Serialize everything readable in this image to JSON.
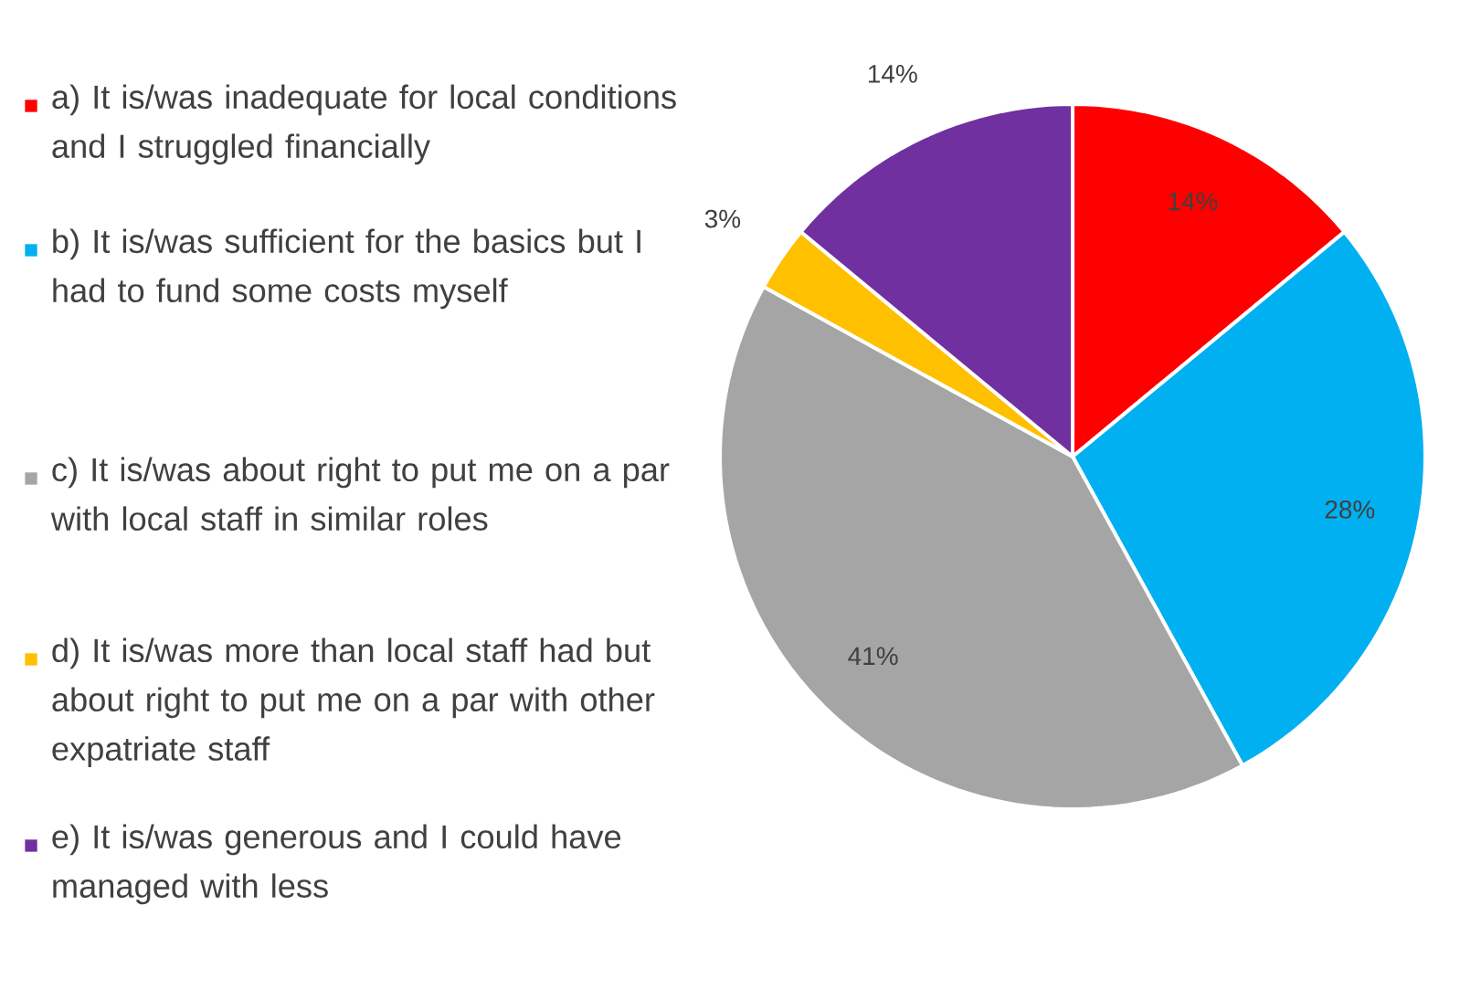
{
  "chart_data": {
    "type": "pie",
    "categories": [
      "a) It is/was inadequate for local conditions and I struggled financially",
      "b) It is/was sufficient for the basics but I had to fund some costs myself",
      "c) It is/was about right to put me on a par with local staff in similar roles",
      "d) It is/was more than local staff had but about right to put me on a par with other expatriate staff",
      "e) It is/was generous and I could have managed with less"
    ],
    "values": [
      14,
      28,
      41,
      3,
      14
    ],
    "colors": [
      "#ff0000",
      "#00b0f0",
      "#a5a5a5",
      "#ffc000",
      "#7030a0"
    ],
    "value_labels": [
      "14%",
      "28%",
      "41%",
      "3%",
      "14%"
    ],
    "legend": "left"
  }
}
